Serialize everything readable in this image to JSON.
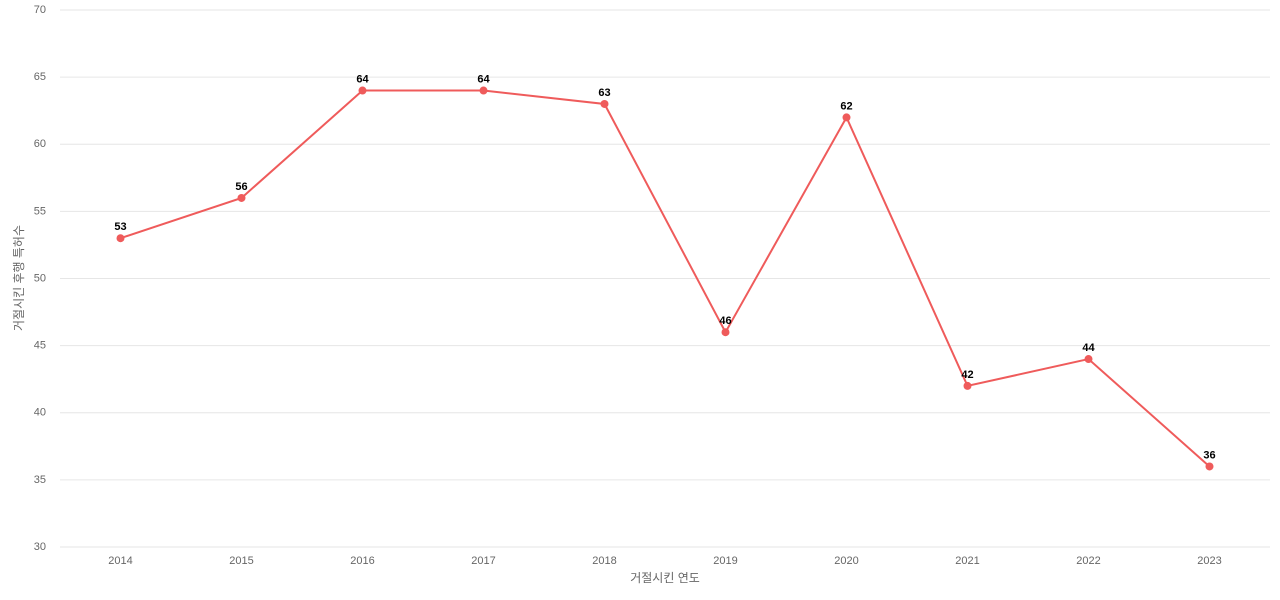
{
  "chart_data": {
    "type": "line",
    "x_label": "거절시킨 연도",
    "y_label": "거절시킨 후행 특허수",
    "categories": [
      "2014",
      "2015",
      "2016",
      "2017",
      "2018",
      "2019",
      "2020",
      "2021",
      "2022",
      "2023"
    ],
    "series": [
      {
        "name": "거절시킨 후행 특허수",
        "color": "#ef5b5b",
        "values": [
          53,
          56,
          64,
          64,
          63,
          46,
          62,
          42,
          44,
          36
        ]
      }
    ],
    "ylim": [
      30,
      70
    ],
    "yticks": [
      30,
      35,
      40,
      45,
      50,
      55,
      60,
      65,
      70
    ],
    "grid": true
  }
}
